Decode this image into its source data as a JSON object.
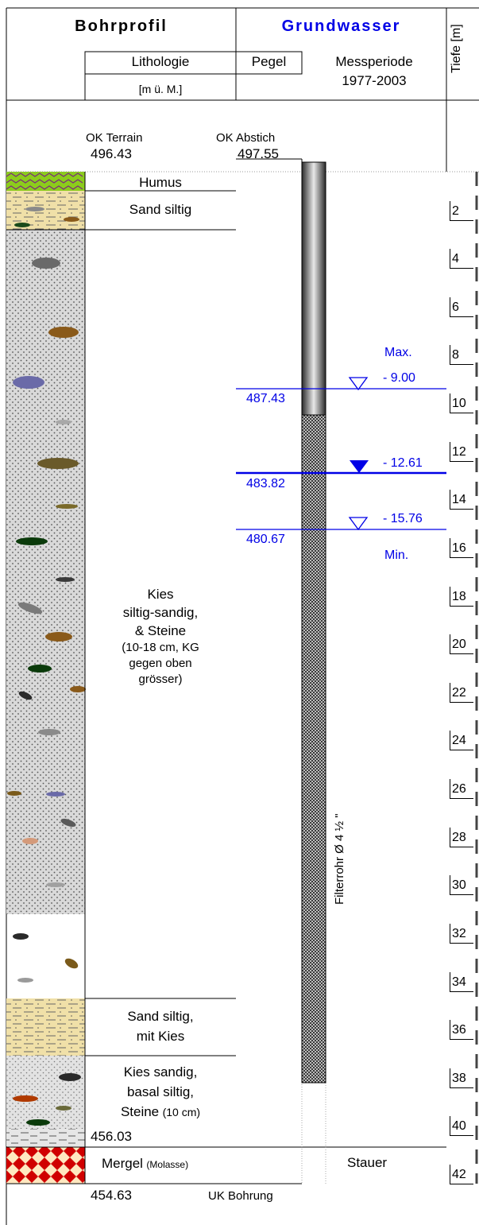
{
  "header": {
    "bohrprofil": "Bohrprofil",
    "grundwasser": "Grundwasser",
    "tiefe": "Tiefe [m]",
    "lithologie": "Lithologie",
    "pegel": "Pegel",
    "einheit": "[m ü. M.]",
    "messperiode_label": "Messperiode",
    "messperiode_range": "1977-2003"
  },
  "top": {
    "ok_terrain_label": "OK Terrain",
    "ok_terrain_value": "496.43",
    "ok_abstich_label": "OK Abstich",
    "ok_abstich_value": "497.55"
  },
  "layers": {
    "humus": "Humus",
    "sand_siltig": "Sand siltig",
    "kies_1": "Kies",
    "kies_2": "siltig-sandig,",
    "kies_3": "& Steine",
    "kies_4": "(10-18 cm, KG",
    "kies_5": "gegen oben",
    "kies_6": "grösser)",
    "sand_kies_1": "Sand siltig,",
    "sand_kies_2": "mit Kies",
    "kies_basal_1": "Kies sandig,",
    "kies_basal_2": "basal siltig,",
    "kies_basal_3a": "Steine",
    "kies_basal_3b": "(10 cm)",
    "kies_basal_elev": "456.03",
    "mergel": "Mergel",
    "mergel_note": "(Molasse)",
    "stauer": "Stauer",
    "bottom_elev": "454.63",
    "bottom_label": "UK Bohrung"
  },
  "water": {
    "max_label": "Max.",
    "max_depth": "-  9.00",
    "max_elev": "487.43",
    "mean_depth": "- 12.61",
    "mean_elev": "483.82",
    "min_depth": "- 15.76",
    "min_elev": "480.67",
    "min_label": "Min."
  },
  "filter_label": "Filterrohr Ø 4 ½ \"",
  "depth_ticks": [
    "2",
    "4",
    "6",
    "8",
    "10",
    "12",
    "14",
    "16",
    "18",
    "20",
    "22",
    "24",
    "26",
    "28",
    "30",
    "32",
    "34",
    "36",
    "38",
    "40",
    "42"
  ],
  "colors": {
    "water_blue": "#0000e6",
    "humus_green": "#8ccc1c",
    "humus_wave": "#7a2e7a",
    "sand_fill": "#f0e0a8",
    "kies_fill": "#d8d8d8",
    "mergel_fill": "#ffe8c0",
    "mergel_diamond": "#d00000"
  }
}
